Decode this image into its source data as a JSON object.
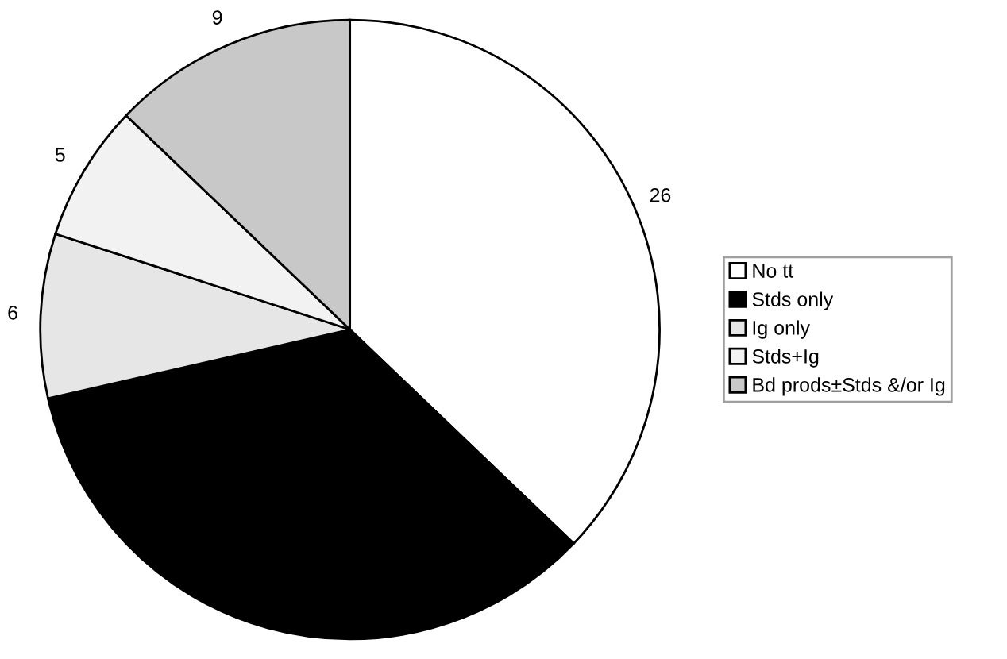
{
  "chart_data": {
    "type": "pie",
    "categories": [
      "No tt",
      "Stds only",
      "Ig only",
      "Stds+Ig",
      "Bd prods±Stds &/or Ig"
    ],
    "values": [
      26,
      24,
      6,
      5,
      9
    ],
    "value_labels": [
      "26",
      null,
      "6",
      "5",
      "9"
    ],
    "colors": [
      "#ffffff",
      "#000000",
      "#e6e6e6",
      "#f2f2f2",
      "#c8c8c8"
    ],
    "legend": "right"
  }
}
